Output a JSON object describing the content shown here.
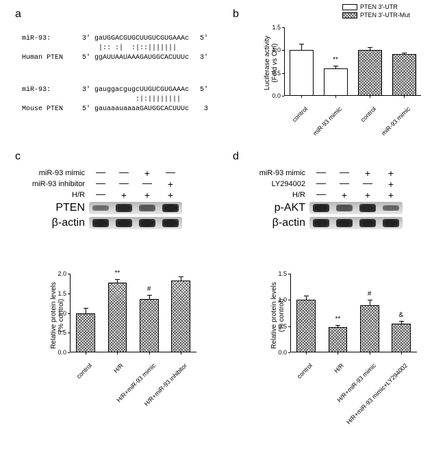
{
  "panel_a": {
    "label": "a",
    "align1": {
      "row1_label": "miR-93:",
      "row1_end5": "3'",
      "row1_seq": "gaUGGACGUGCUUGUCGUGAAAc",
      "row1_end3": "5'",
      "match": "  |:: :|  :|::|||||||",
      "row2_label": "Human PTEN",
      "row2_end5": "5'",
      "row2_seq": "ggAUUAAUAAAGAUGGCACUUUc",
      "row2_end3": "3'"
    },
    "align2": {
      "row1_label": "miR-93:",
      "row1_end5": "3'",
      "row1_seq": "gauggacgugcUUGUCGUGAAAc",
      "row1_end3": "5'",
      "match": "           :|:||||||||",
      "row2_label": "Mouse PTEN",
      "row2_end5": "5'",
      "row2_seq": "gauaaauaaaaGAUGGCACUUUc",
      "row2_end3": "3"
    }
  },
  "panel_b": {
    "label": "b",
    "legend": [
      {
        "text": "PTEN 3'-UTR",
        "hatch": false
      },
      {
        "text": "PTEN 3'-UTR-Mut",
        "hatch": true
      }
    ],
    "ylabel_line1": "Luciferase activity",
    "ylabel_line2": "(Fold vs Ctrl)",
    "ylim": [
      0,
      1.5
    ],
    "ytick_step": 0.5,
    "bars": [
      {
        "x": 0,
        "value": 1.0,
        "err": 0.16,
        "hatch": false,
        "label": "control",
        "sig": ""
      },
      {
        "x": 1,
        "value": 0.6,
        "err": 0.07,
        "hatch": false,
        "label": "miR-93 mimic",
        "sig": "**"
      },
      {
        "x": 2,
        "value": 1.0,
        "err": 0.08,
        "hatch": true,
        "label": "control",
        "sig": ""
      },
      {
        "x": 3,
        "value": 0.91,
        "err": 0.05,
        "hatch": true,
        "label": "miR-93 mimic",
        "sig": ""
      }
    ],
    "bar_width": 0.7,
    "bar_border": "#000000",
    "background_color": "#ffffff"
  },
  "panel_c": {
    "label": "c",
    "conditions": [
      {
        "label": "miR-93 mimic",
        "vals": [
          "-",
          "-",
          "+",
          "-"
        ]
      },
      {
        "label": "miR-93 inhibitor",
        "vals": [
          "-",
          "-",
          "-",
          "+"
        ]
      },
      {
        "label": "H/R",
        "vals": [
          "-",
          "+",
          "+",
          "+"
        ]
      }
    ],
    "blots": [
      {
        "label": "PTEN",
        "intensities": [
          0.4,
          0.9,
          0.55,
          0.95
        ]
      },
      {
        "label": "β-actin",
        "intensities": [
          0.95,
          0.95,
          0.95,
          0.95
        ]
      }
    ],
    "chart": {
      "ylabel_line1": "Relative protein levels",
      "ylabel_line2": "(% control)",
      "ylim": [
        0,
        2.0
      ],
      "ytick_step": 0.5,
      "bars": [
        {
          "value": 1.0,
          "err": 0.15,
          "label": "control",
          "sig": ""
        },
        {
          "value": 1.78,
          "err": 0.1,
          "label": "H/R",
          "sig": "**"
        },
        {
          "value": 1.35,
          "err": 0.13,
          "label": "H/R+miR-93 mimic",
          "sig": "#"
        },
        {
          "value": 1.82,
          "err": 0.12,
          "label": "H/R+miR-93 inhibitor",
          "sig": ""
        }
      ],
      "hatch": true
    }
  },
  "panel_d": {
    "label": "d",
    "conditions": [
      {
        "label": "miR-93 mimic",
        "vals": [
          "-",
          "-",
          "+",
          "+"
        ]
      },
      {
        "label": "LY294002",
        "vals": [
          "-",
          "-",
          "-",
          "+"
        ]
      },
      {
        "label": "H/R",
        "vals": [
          "-",
          "+",
          "+",
          "+"
        ]
      }
    ],
    "blots": [
      {
        "label": "p-AKT",
        "intensities": [
          0.95,
          0.6,
          0.9,
          0.45
        ]
      },
      {
        "label": "β-actin",
        "intensities": [
          0.95,
          0.95,
          0.95,
          0.95
        ]
      }
    ],
    "chart": {
      "ylabel_line1": "Relative protein levels",
      "ylabel_line2": "(% control)",
      "ylim": [
        0,
        1.5
      ],
      "ytick_step": 0.5,
      "bars": [
        {
          "value": 1.0,
          "err": 0.1,
          "label": "control",
          "sig": ""
        },
        {
          "value": 0.48,
          "err": 0.06,
          "label": "H/R",
          "sig": "**"
        },
        {
          "value": 0.9,
          "err": 0.12,
          "label": "H/R+miR-93 mimic",
          "sig": "#"
        },
        {
          "value": 0.55,
          "err": 0.06,
          "label": "H/R+miR-93 mimic+LY294002",
          "sig": "&"
        }
      ],
      "hatch": true
    }
  }
}
